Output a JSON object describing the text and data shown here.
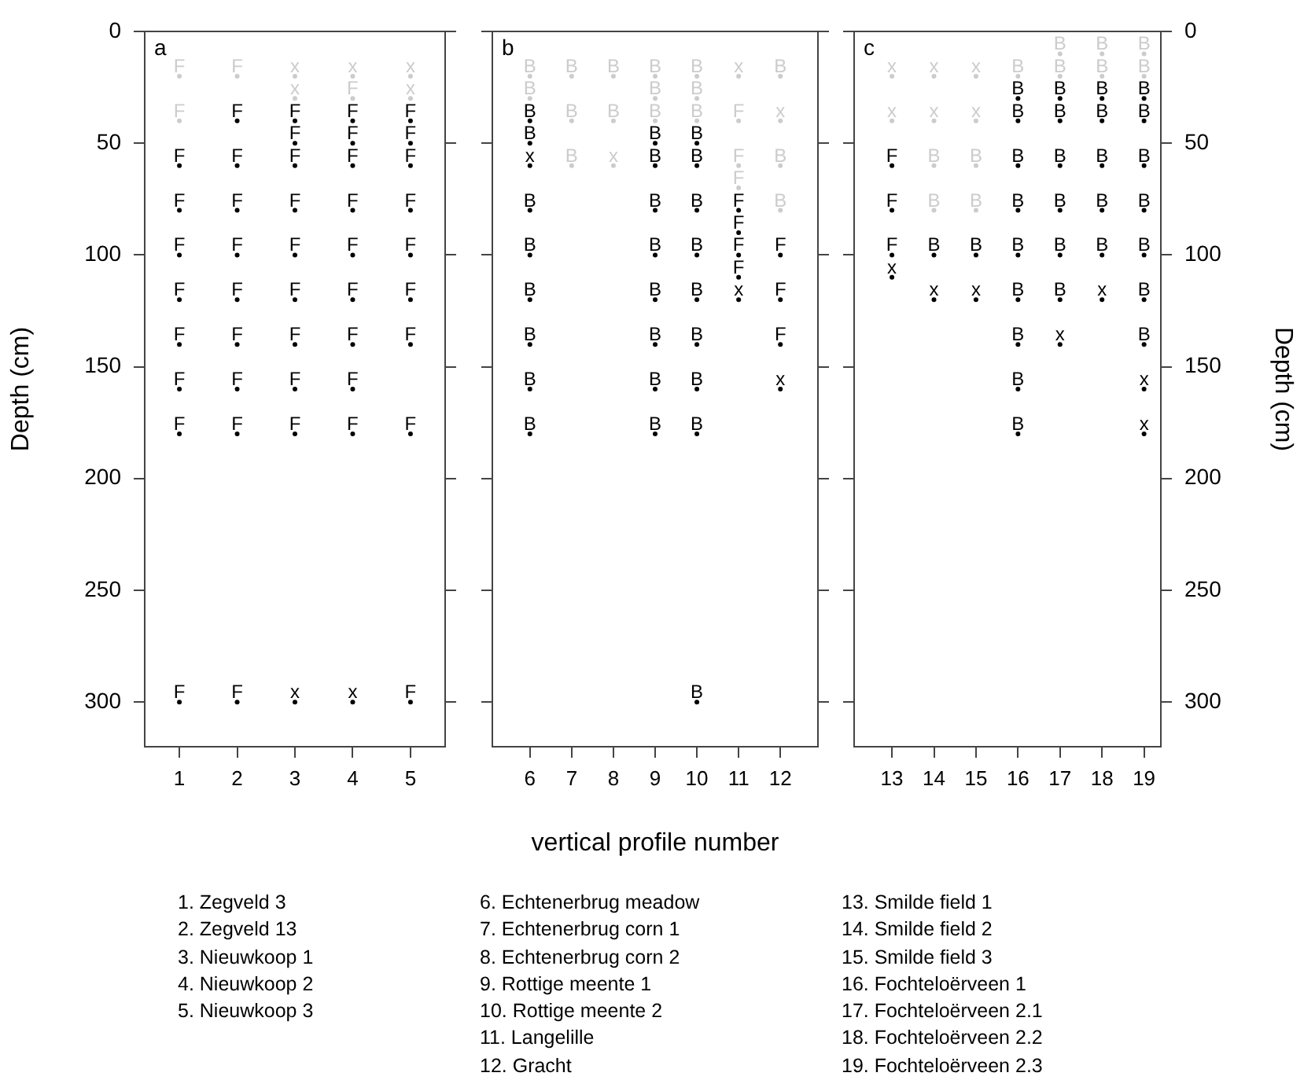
{
  "chart_data": [
    {
      "type": "scatter",
      "title": "a",
      "ylabel": "Depth (cm)",
      "xlim": [
        0.4,
        5.6
      ],
      "xticks": [
        1,
        2,
        3,
        4,
        5
      ],
      "ylim": [
        320,
        0
      ],
      "yticks": [
        0,
        50,
        100,
        150,
        200,
        250,
        300
      ],
      "marker": "circle",
      "grid": false,
      "series": [
        {
          "color": "#000000",
          "x": [
            1,
            1,
            1,
            1,
            1,
            1,
            1,
            1,
            2,
            2,
            2,
            2,
            2,
            2,
            2,
            2,
            2,
            3,
            3,
            3,
            3,
            3,
            3,
            3,
            3,
            3,
            3,
            4,
            4,
            4,
            4,
            4,
            4,
            4,
            4,
            4,
            4,
            5,
            5,
            5,
            5,
            5,
            5,
            5,
            5,
            5
          ],
          "values": [
            60,
            80,
            100,
            120,
            140,
            160,
            180,
            300,
            40,
            60,
            80,
            100,
            120,
            140,
            160,
            180,
            300,
            40,
            50,
            60,
            80,
            100,
            120,
            140,
            160,
            180,
            300,
            40,
            50,
            60,
            80,
            100,
            120,
            140,
            160,
            180,
            300,
            40,
            50,
            60,
            80,
            100,
            120,
            140,
            180,
            300
          ],
          "value_labels": [
            "F",
            "F",
            "F",
            "F",
            "F",
            "F",
            "F",
            "F",
            "F",
            "F",
            "F",
            "F",
            "F",
            "F",
            "F",
            "F",
            "F",
            "F",
            "F",
            "F",
            "F",
            "F",
            "F",
            "F",
            "F",
            "F",
            "x",
            "F",
            "F",
            "F",
            "F",
            "F",
            "F",
            "F",
            "F",
            "F",
            "x",
            "F",
            "F",
            "F",
            "F",
            "F",
            "F",
            "F",
            "F",
            "F"
          ]
        },
        {
          "color": "#cccccc",
          "x": [
            1,
            1,
            2,
            3,
            3,
            4,
            4,
            5,
            5
          ],
          "values": [
            20,
            40,
            20,
            20,
            30,
            20,
            30,
            20,
            30
          ],
          "value_labels": [
            "F",
            "F",
            "F",
            "x",
            "x",
            "x",
            "F",
            "x",
            "x"
          ]
        }
      ],
      "annotations": [
        "1. Zegveld 3",
        "2. Zegveld 13",
        "3. Nieuwkoop 1",
        "4. Nieuwkoop 2",
        "5. Nieuwkoop 3"
      ]
    },
    {
      "type": "scatter",
      "title": "b",
      "xlabel": "vertical profile number",
      "xlim": [
        5.1,
        12.9
      ],
      "xticks": [
        6,
        7,
        8,
        9,
        10,
        11,
        12
      ],
      "ylim": [
        320,
        0
      ],
      "yticks": [
        0,
        50,
        100,
        150,
        200,
        250,
        300
      ],
      "tick_labels": "x",
      "marker": "circle",
      "grid": false,
      "series": [
        {
          "color": "#000000",
          "x": [
            6,
            6,
            6,
            6,
            6,
            6,
            6,
            6,
            6,
            9,
            9,
            9,
            9,
            9,
            9,
            9,
            9,
            10,
            10,
            10,
            10,
            10,
            10,
            10,
            10,
            10,
            11,
            11,
            11,
            11,
            11,
            12,
            12,
            12,
            12
          ],
          "values": [
            40,
            50,
            60,
            80,
            100,
            120,
            140,
            160,
            180,
            50,
            60,
            80,
            100,
            120,
            140,
            160,
            180,
            50,
            60,
            80,
            100,
            120,
            140,
            160,
            180,
            300,
            80,
            90,
            100,
            110,
            120,
            100,
            120,
            140,
            160
          ],
          "value_labels": [
            "B",
            "B",
            "x",
            "B",
            "B",
            "B",
            "B",
            "B",
            "B",
            "B",
            "B",
            "B",
            "B",
            "B",
            "B",
            "B",
            "B",
            "B",
            "B",
            "B",
            "B",
            "B",
            "B",
            "B",
            "B",
            "B",
            "F",
            "F",
            "F",
            "F",
            "x",
            "F",
            "F",
            "F",
            "x"
          ]
        },
        {
          "color": "#cccccc",
          "x": [
            6,
            6,
            7,
            7,
            7,
            8,
            8,
            8,
            9,
            9,
            9,
            10,
            10,
            10,
            11,
            11,
            11,
            11,
            12,
            12,
            12,
            12
          ],
          "values": [
            20,
            30,
            20,
            40,
            60,
            20,
            40,
            60,
            20,
            30,
            40,
            20,
            30,
            40,
            20,
            40,
            60,
            70,
            20,
            40,
            60,
            80
          ],
          "value_labels": [
            "B",
            "B",
            "B",
            "B",
            "B",
            "B",
            "B",
            "x",
            "B",
            "B",
            "B",
            "B",
            "B",
            "B",
            "x",
            "F",
            "F",
            "F",
            "B",
            "x",
            "B",
            "B"
          ]
        }
      ],
      "annotations": [
        "6. Echtenerbrug meadow",
        "7. Echtenerbrug corn 1",
        "8. Echtenerbrug corn 2",
        "9. Rottige meente 1",
        "10. Rottige meente 2",
        "11. Langelille",
        "12. Gracht"
      ]
    },
    {
      "type": "scatter",
      "title": "c",
      "y2label": "Depth (cm)",
      "xlim": [
        12.1,
        19.4
      ],
      "xticks": [
        13,
        14,
        15,
        16,
        17,
        18,
        19
      ],
      "y2lim": [
        320,
        0
      ],
      "y2ticks": [
        0,
        50,
        100,
        150,
        200,
        250,
        300
      ],
      "marker": "circle",
      "grid": false,
      "series": [
        {
          "color": "#000000",
          "axis": "y2",
          "x": [
            13,
            13,
            13,
            13,
            14,
            14,
            15,
            15,
            16,
            16,
            16,
            16,
            16,
            16,
            16,
            16,
            16,
            17,
            17,
            17,
            17,
            17,
            17,
            17,
            18,
            18,
            18,
            18,
            18,
            18,
            19,
            19,
            19,
            19,
            19,
            19,
            19,
            19,
            19
          ],
          "values": [
            60,
            80,
            100,
            110,
            100,
            120,
            100,
            120,
            30,
            40,
            60,
            80,
            100,
            120,
            140,
            160,
            180,
            30,
            40,
            60,
            80,
            100,
            120,
            140,
            30,
            40,
            60,
            80,
            100,
            120,
            30,
            40,
            60,
            80,
            100,
            120,
            140,
            160,
            180
          ],
          "value_labels": [
            "F",
            "F",
            "F",
            "x",
            "B",
            "x",
            "B",
            "x",
            "B",
            "B",
            "B",
            "B",
            "B",
            "B",
            "B",
            "B",
            "B",
            "B",
            "B",
            "B",
            "B",
            "B",
            "B",
            "x",
            "B",
            "B",
            "B",
            "B",
            "B",
            "x",
            "B",
            "B",
            "B",
            "B",
            "B",
            "B",
            "B",
            "x",
            "x"
          ]
        },
        {
          "color": "#cccccc",
          "axis": "y2",
          "x": [
            13,
            13,
            14,
            14,
            14,
            14,
            15,
            15,
            15,
            15,
            16,
            17,
            17,
            18,
            18,
            19,
            19
          ],
          "values": [
            20,
            40,
            20,
            40,
            60,
            80,
            20,
            40,
            60,
            80,
            20,
            10,
            20,
            10,
            20,
            10,
            20
          ],
          "value_labels": [
            "x",
            "x",
            "x",
            "x",
            "B",
            "B",
            "x",
            "x",
            "B",
            "B",
            "B",
            "B",
            "B",
            "B",
            "B",
            "B",
            "B"
          ]
        }
      ],
      "annotations": [
        "13. Smilde field 1",
        "14. Smilde field 2",
        "15. Smilde field 3",
        "16. Fochteloërveen 1",
        "17. Fochteloërveen 2.1",
        "18. Fochteloërveen 2.2",
        "19. Fochteloërveen 2.3"
      ]
    }
  ]
}
